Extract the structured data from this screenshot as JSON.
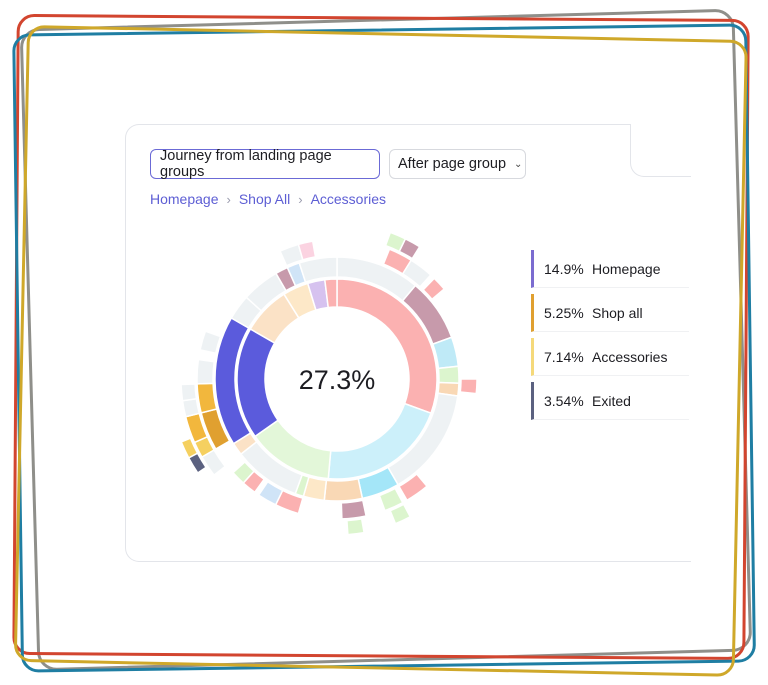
{
  "controls": {
    "journey_label": "Journey from landing page groups",
    "after_label": "After page group"
  },
  "breadcrumb": [
    "Homepage",
    "Shop All",
    "Accessories"
  ],
  "center_value": "27.3%",
  "legend": [
    {
      "pct": "14.9%",
      "label": "Homepage",
      "color": "#7b6cd0"
    },
    {
      "pct": "5.25%",
      "label": "Shop all",
      "color": "#e0a030"
    },
    {
      "pct": "7.14%",
      "label": "Accessories",
      "color": "#f5d97a"
    },
    {
      "pct": "3.54%",
      "label": "Exited",
      "color": "#5b6180"
    }
  ],
  "colors": {
    "accent": "#5d5ed4",
    "frame_gray": "#8f8f8a",
    "frame_red": "#d2452f",
    "frame_blue": "#1f7ea3",
    "frame_yellow": "#cfa82a"
  }
}
